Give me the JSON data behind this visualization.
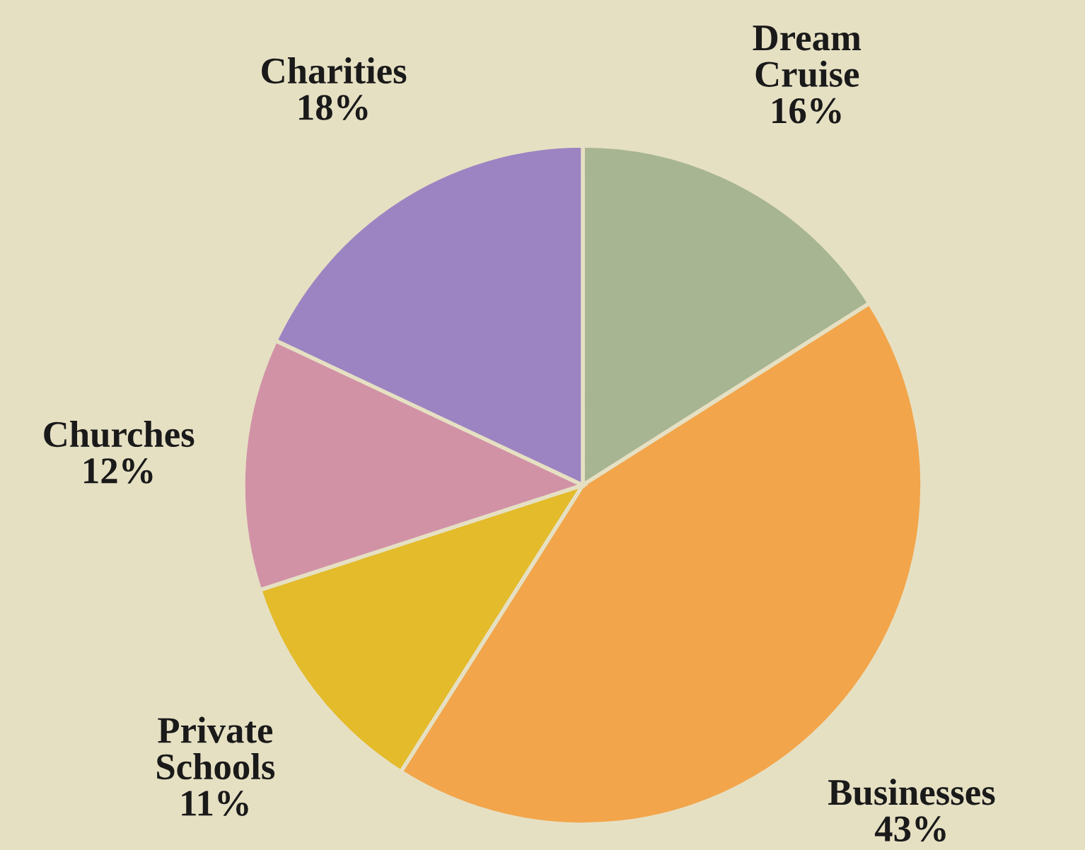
{
  "chart_data": {
    "type": "pie",
    "categories": [
      "Dream Cruise",
      "Businesses",
      "Private Schools",
      "Churches",
      "Charities"
    ],
    "values": [
      16,
      43,
      11,
      12,
      18
    ],
    "value_labels": [
      "16%",
      "43%",
      "11%",
      "12%",
      "18%"
    ],
    "colors": [
      "#a7b592",
      "#f2a54a",
      "#e3bb2b",
      "#d192a6",
      "#9c84c2"
    ],
    "legend": false
  }
}
